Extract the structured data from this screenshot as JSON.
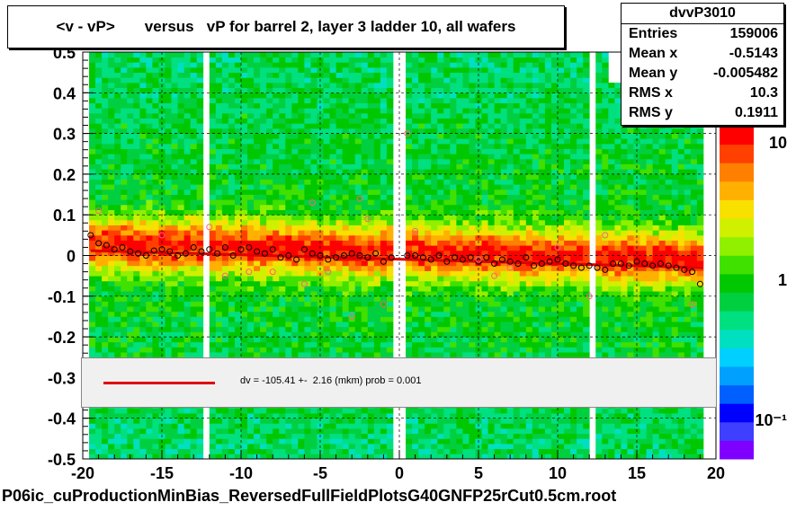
{
  "title": "<v - vP>       versus   vP for barrel 2, layer 3 ladder 10, all wafers",
  "stats": {
    "name": "dvvP3010",
    "rows": [
      {
        "key": "Entries",
        "value": "159006"
      },
      {
        "key": "Mean x",
        "value": "-0.5143"
      },
      {
        "key": "Mean y",
        "value": "-0.005482"
      },
      {
        "key": "RMS x",
        "value": "10.3"
      },
      {
        "key": "RMS y",
        "value": "0.1911"
      }
    ]
  },
  "fit_legend": "dv = -105.41 +-  2.16 (mkm) prob = 0.001",
  "footer": "P06ic_cuProductionMinBias_ReversedFullFieldPlotsG40GNFP25rCut0.5cm.root",
  "colors": {
    "fit_line": "#e00000",
    "palette": [
      "#7f00ff",
      "#3f3fff",
      "#0000ff",
      "#0060ff",
      "#00a0ff",
      "#00d0ff",
      "#00e0c0",
      "#00e080",
      "#00d040",
      "#00c800",
      "#40e000",
      "#90f000",
      "#d0f000",
      "#f8e000",
      "#ffb000",
      "#ff8000",
      "#ff4000",
      "#ff0000"
    ]
  },
  "chart_data": {
    "type": "heatmap",
    "title": "<v - vP>       versus   vP for barrel 2, layer 3 ladder 10, all wafers",
    "xlim": [
      -20,
      20
    ],
    "ylim": [
      -0.5,
      0.5
    ],
    "x_ticks": [
      -20,
      -15,
      -10,
      -5,
      0,
      5,
      10,
      15,
      20
    ],
    "y_ticks": [
      -0.5,
      -0.4,
      -0.3,
      -0.2,
      -0.1,
      0,
      0.1,
      0.2,
      0.3,
      0.4,
      0.5
    ],
    "y_tick_labels": [
      "-0.5",
      "-0.4",
      "-0.3",
      "-0.2",
      "-0.1",
      "0",
      "0.1",
      "0.2",
      "0.3",
      "0.4",
      "0.5"
    ],
    "x_tick_labels": [
      "-20",
      "-15",
      "-10",
      "-5",
      "0",
      "5",
      "10",
      "15",
      "20"
    ],
    "color_scale": {
      "type": "log",
      "labels": [
        "10",
        "1",
        "10⁻¹"
      ]
    },
    "grid": true,
    "fit": {
      "type": "line",
      "intercept_um": -105.41,
      "error_um": 2.16,
      "prob": 0.001,
      "y_at_xmin": 0.012,
      "y_at_xmax": -0.03
    },
    "profile_points": {
      "x": [
        -19.5,
        -19,
        -18.5,
        -18,
        -17.5,
        -17,
        -16.5,
        -16,
        -15.5,
        -15,
        -14.5,
        -14,
        -13.5,
        -13,
        -12.5,
        -12,
        -11.5,
        -11,
        -10.5,
        -10,
        -9.5,
        -9,
        -8.5,
        -8,
        -7.5,
        -7,
        -6.5,
        -6,
        -5.5,
        -5,
        -4.5,
        -4,
        -3.5,
        -3,
        -2.5,
        -2,
        -1.5,
        -1,
        -0.5,
        0.5,
        1,
        1.5,
        2,
        2.5,
        3,
        3.5,
        4,
        4.5,
        5,
        5.5,
        6,
        6.5,
        7,
        7.5,
        8,
        8.5,
        9,
        9.5,
        10,
        10.5,
        11,
        11.5,
        12,
        12.5,
        13,
        13.5,
        14,
        14.5,
        15,
        15.5,
        16,
        16.5,
        17,
        17.5,
        18,
        18.5,
        19
      ],
      "y": [
        0.05,
        0.03,
        0.025,
        0.015,
        0.02,
        0.01,
        0.005,
        0.0,
        0.012,
        0.015,
        0.01,
        0.0,
        0.005,
        0.02,
        0.01,
        0.015,
        0.005,
        0.02,
        0.0,
        0.015,
        0.02,
        0.01,
        0.005,
        0.015,
        -0.005,
        0.0,
        -0.01,
        0.015,
        0.005,
        0.0,
        -0.01,
        -0.005,
        0.0,
        0.005,
        0.0,
        -0.005,
        0.005,
        -0.015,
        -0.005,
        0.0,
        0.0,
        -0.005,
        -0.01,
        0.0,
        -0.015,
        -0.005,
        -0.01,
        -0.005,
        -0.015,
        -0.005,
        -0.02,
        -0.01,
        -0.015,
        -0.02,
        -0.005,
        -0.025,
        -0.02,
        -0.015,
        -0.01,
        -0.02,
        -0.025,
        -0.03,
        -0.025,
        -0.03,
        -0.035,
        -0.02,
        -0.02,
        -0.025,
        -0.015,
        -0.02,
        -0.025,
        -0.02,
        -0.025,
        -0.03,
        -0.035,
        -0.04,
        -0.07
      ]
    },
    "outlier_points": {
      "x": [
        -19,
        -15,
        -12,
        -11,
        -9.5,
        -8,
        -6,
        -5.5,
        -4.5,
        -3,
        -2.5,
        -2,
        -1,
        0.5,
        1,
        5,
        6,
        7,
        10,
        12,
        13,
        18.5
      ],
      "y": [
        0.11,
        0.05,
        0.07,
        -0.05,
        -0.04,
        -0.04,
        -0.07,
        0.13,
        -0.04,
        -0.15,
        0.14,
        0.09,
        -0.12,
        0.3,
        0.06,
        -0.01,
        -0.05,
        -0.03,
        0.02,
        -0.1,
        0.05,
        -0.12
      ]
    }
  }
}
